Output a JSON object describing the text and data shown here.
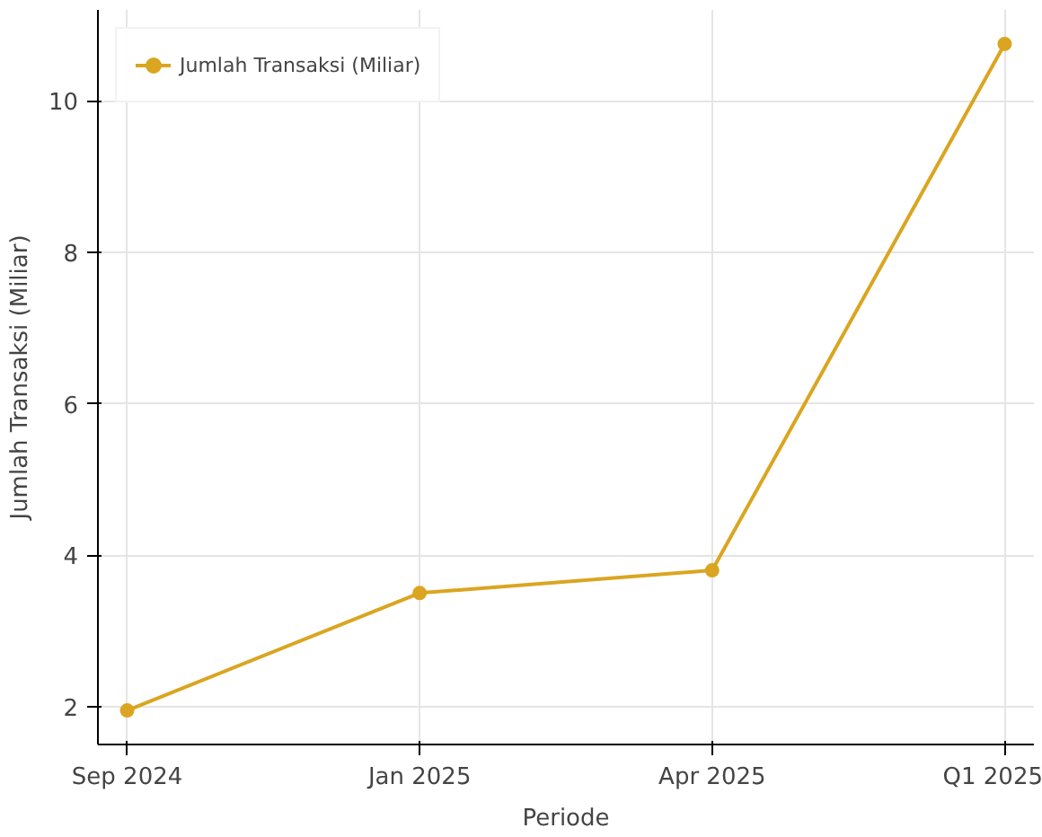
{
  "chart_data": {
    "type": "line",
    "xlabel": "Periode",
    "ylabel": "Jumlah Transaksi (Miliar)",
    "categories": [
      "Sep 2024",
      "Jan 2025",
      "Apr 2025",
      "Q1 2025"
    ],
    "series": [
      {
        "name": "Jumlah Transaksi (Miliar)",
        "color": "#daa520",
        "values": [
          1.95,
          3.5,
          3.8,
          10.75
        ]
      }
    ],
    "ylim": [
      1.5,
      11.2
    ],
    "yticks": [
      2,
      4,
      6,
      8,
      10
    ],
    "grid": true,
    "legend": "top left",
    "marker": "circle",
    "line_style": "solid"
  }
}
